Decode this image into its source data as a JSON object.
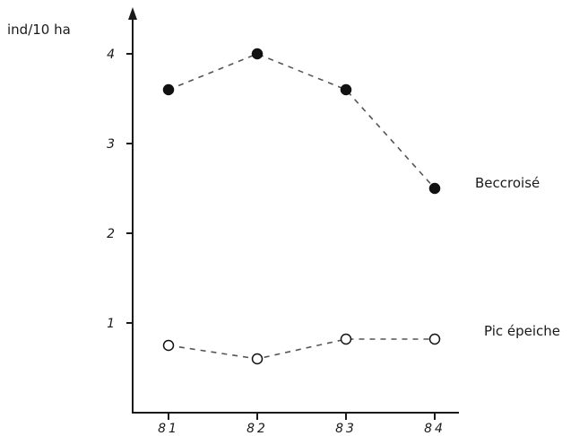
{
  "chart_data": {
    "type": "line",
    "ylabel": "ind/10 ha",
    "categories": [
      "81",
      "82",
      "83",
      "84"
    ],
    "y_ticks": [
      "1",
      "2",
      "3",
      "4"
    ],
    "ylim": [
      0,
      4.4
    ],
    "series": [
      {
        "name": "Beccroisé",
        "values": [
          3.6,
          4.0,
          3.6,
          2.5
        ],
        "marker": "filled-circle",
        "line_style": "dashed"
      },
      {
        "name": "Pic épeiche",
        "values": [
          0.75,
          0.6,
          0.82,
          0.82
        ],
        "marker": "open-circle",
        "line_style": "dashed"
      }
    ],
    "grid": false,
    "legend": "series labels at right end of lines"
  }
}
